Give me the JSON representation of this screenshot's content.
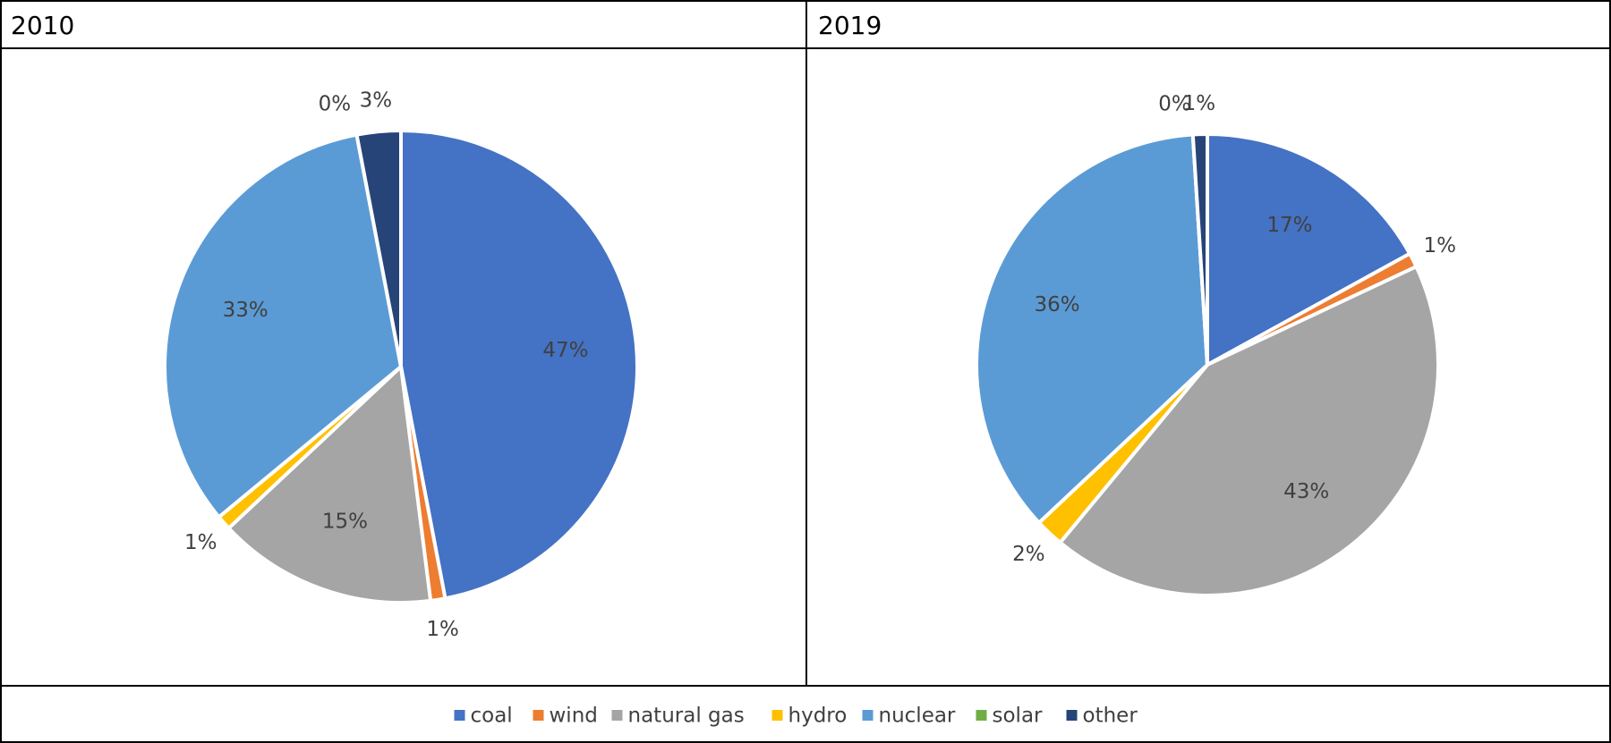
{
  "chart_data": [
    {
      "type": "pie",
      "title": "2010",
      "categories": [
        "coal",
        "wind",
        "natural gas",
        "hydro",
        "nuclear",
        "solar",
        "other"
      ],
      "colors": [
        "#4472c4",
        "#ed7d31",
        "#a5a5a5",
        "#ffc000",
        "#5b9bd5",
        "#70ad47",
        "#264478"
      ],
      "values": [
        47,
        1,
        15,
        1,
        33,
        0,
        3
      ],
      "value_labels": [
        "47%",
        "1%",
        "15%",
        "1%",
        "33%",
        "0%",
        "3%"
      ]
    },
    {
      "type": "pie",
      "title": "2019",
      "categories": [
        "coal",
        "wind",
        "natural gas",
        "hydro",
        "nuclear",
        "solar",
        "other"
      ],
      "colors": [
        "#4472c4",
        "#ed7d31",
        "#a5a5a5",
        "#ffc000",
        "#5b9bd5",
        "#70ad47",
        "#264478"
      ],
      "values": [
        17,
        1,
        43,
        2,
        36,
        0,
        1
      ],
      "value_labels": [
        "17%",
        "1%",
        "43%",
        "2%",
        "36%",
        "0%",
        "1%"
      ]
    }
  ]
}
